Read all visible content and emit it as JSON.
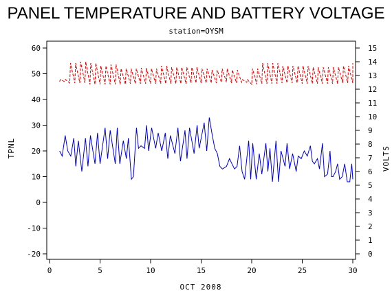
{
  "chart_data": {
    "type": "line",
    "title": "PANEL TEMPERATURE AND BATTERY VOLTAGE",
    "subtitle": "station=OYSM",
    "xlabel": "OCT 2008",
    "ylabel_left": "TPNL",
    "ylabel_right": "VOLTS",
    "xlim": [
      0,
      30
    ],
    "ylim_left": [
      -20,
      60
    ],
    "ylim_right": [
      0,
      15
    ],
    "x_ticks": [
      "0",
      "5",
      "10",
      "15",
      "20",
      "25",
      "30"
    ],
    "y_ticks_left": [
      "-20",
      "-10",
      "0",
      "10",
      "20",
      "30",
      "40",
      "50",
      "60"
    ],
    "y_ticks_right": [
      "0",
      "1",
      "2",
      "3",
      "4",
      "5",
      "6",
      "7",
      "8",
      "9",
      "10",
      "11",
      "12",
      "13",
      "14",
      "15"
    ],
    "grid": false,
    "colors": {
      "temperature": "#0000cc",
      "voltage": "#dd0000"
    },
    "series": [
      {
        "axis": "left",
        "style": "solid",
        "x": [
          1.0,
          1.25,
          1.55,
          1.8,
          2.1,
          2.4,
          2.6,
          2.85,
          3.2,
          3.55,
          3.8,
          4.05,
          4.5,
          4.75,
          5.0,
          5.5,
          5.75,
          6.0,
          6.5,
          6.7,
          6.95,
          7.3,
          7.6,
          7.8,
          8.1,
          8.3,
          8.6,
          8.8,
          9.05,
          9.4,
          9.6,
          9.8,
          10.1,
          10.5,
          10.75,
          11.1,
          11.45,
          11.7,
          11.95,
          12.4,
          12.7,
          12.95,
          13.4,
          13.6,
          13.85,
          14.3,
          14.6,
          14.8,
          15.3,
          15.55,
          15.8,
          16.1,
          16.35,
          16.6,
          16.85,
          17.1,
          17.5,
          17.8,
          18.05,
          18.3,
          18.55,
          18.8,
          19.05,
          19.3,
          19.7,
          19.9,
          20.1,
          20.45,
          20.75,
          21.0,
          21.4,
          21.6,
          21.8,
          22.05,
          22.4,
          22.65,
          22.9,
          23.3,
          23.5,
          23.75,
          24.05,
          24.4,
          24.6,
          24.9,
          25.2,
          25.5,
          25.8,
          26.0,
          26.2,
          26.5,
          26.7,
          27.0,
          27.2,
          27.5,
          27.75,
          27.9,
          28.05,
          28.3,
          28.5,
          28.7,
          28.95,
          29.2,
          29.45,
          29.7,
          29.9,
          30.0
        ],
        "values": [
          20,
          18,
          26,
          20,
          18,
          25,
          14,
          24,
          12,
          25,
          14,
          26,
          15,
          27,
          15,
          29,
          17,
          28,
          15,
          29,
          15,
          24,
          17,
          25,
          9,
          10,
          29,
          21,
          22,
          21,
          30,
          20,
          29,
          21,
          27,
          20,
          27,
          17,
          26,
          19,
          29,
          16,
          28,
          17,
          29,
          19,
          30,
          21,
          31,
          20,
          33,
          26,
          21,
          19,
          14,
          13,
          14,
          17,
          15,
          13,
          14,
          22,
          12,
          9,
          24,
          9,
          23,
          9,
          19,
          11,
          23,
          12,
          21,
          8,
          24,
          8,
          20,
          14,
          23,
          13,
          19,
          12,
          18,
          17,
          20,
          18,
          22,
          16,
          15,
          17,
          13,
          23,
          10,
          11,
          20,
          10,
          10,
          12,
          15,
          9,
          10,
          15,
          8,
          8,
          15,
          9
        ],
        "label": ""
      },
      {
        "axis": "right",
        "style": "dashed",
        "cycle_days": 0.5,
        "x_range": [
          1.0,
          30.0
        ],
        "low_values": [
          12.55,
          12.45,
          12.45,
          12.35,
          12.35,
          12.35,
          12.35,
          12.4,
          12.4,
          12.4,
          12.4,
          12.4,
          12.4,
          12.45,
          12.45,
          12.45,
          12.5,
          12.45,
          12.5,
          12.35,
          12.4,
          12.4,
          12.45,
          12.45,
          12.4,
          12.4,
          12.4,
          12.4,
          12.45,
          12.45
        ],
        "high_values": [
          12.7,
          13.9,
          14.0,
          13.9,
          13.7,
          13.8,
          13.5,
          13.5,
          13.55,
          13.5,
          13.7,
          13.6,
          13.6,
          13.6,
          13.5,
          13.4,
          13.5,
          13.4,
          12.7,
          13.5,
          13.9,
          13.9,
          13.7,
          13.7,
          13.7,
          13.6,
          13.6,
          13.6,
          13.7,
          13.9
        ],
        "label": ""
      }
    ]
  }
}
